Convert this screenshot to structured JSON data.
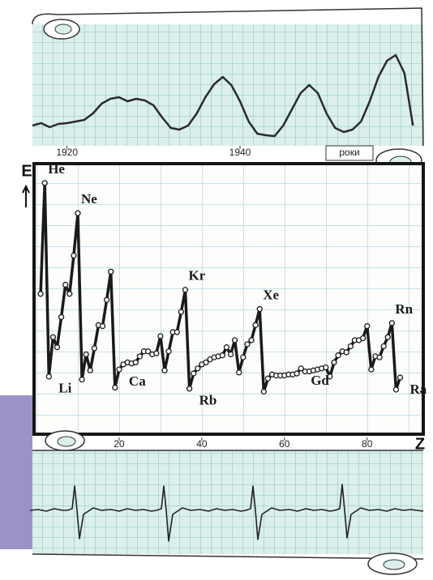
{
  "chart_data": [
    {
      "type": "line",
      "color": "#2b2b2b",
      "x": [
        1916,
        1917,
        1918,
        1919,
        1920,
        1921,
        1922,
        1923,
        1924,
        1925,
        1926,
        1927,
        1928,
        1929,
        1930,
        1931,
        1932,
        1933,
        1934,
        1935,
        1936,
        1937,
        1938,
        1939,
        1940,
        1941,
        1942,
        1943,
        1944,
        1945,
        1946,
        1947,
        1948,
        1949,
        1950,
        1951,
        1952,
        1953,
        1954,
        1955,
        1956,
        1957,
        1958,
        1959,
        1960
      ],
      "values": [
        25,
        28,
        23,
        27,
        28,
        30,
        32,
        40,
        52,
        58,
        60,
        55,
        58,
        56,
        50,
        35,
        22,
        20,
        25,
        40,
        60,
        76,
        85,
        75,
        55,
        30,
        15,
        13,
        12,
        25,
        45,
        65,
        75,
        65,
        40,
        22,
        17,
        20,
        30,
        55,
        85,
        105,
        112,
        90,
        25
      ],
      "xlim": [
        1916,
        1961
      ],
      "ylim": [
        0,
        130
      ],
      "xticks": [
        1920,
        1940
      ],
      "xlabel": "роки"
    },
    {
      "type": "line",
      "color": "#1a1a1a",
      "markers": true,
      "x": [
        1,
        2,
        3,
        4,
        5,
        6,
        7,
        8,
        9,
        10,
        11,
        12,
        13,
        14,
        15,
        16,
        17,
        18,
        19,
        20,
        21,
        22,
        23,
        24,
        25,
        26,
        27,
        28,
        29,
        30,
        31,
        32,
        33,
        34,
        35,
        36,
        37,
        38,
        39,
        40,
        41,
        42,
        43,
        44,
        45,
        46,
        47,
        48,
        49,
        50,
        51,
        52,
        53,
        54,
        55,
        56,
        57,
        58,
        59,
        60,
        61,
        62,
        63,
        64,
        65,
        66,
        67,
        68,
        69,
        70,
        71,
        72,
        73,
        74,
        75,
        76,
        77,
        78,
        79,
        80,
        81,
        82,
        83,
        84,
        85,
        86,
        87,
        88
      ],
      "values": [
        13.6,
        24.6,
        5.4,
        9.3,
        8.3,
        11.3,
        14.5,
        13.6,
        17.4,
        21.6,
        5.1,
        7.6,
        6.0,
        8.2,
        10.5,
        10.4,
        13.0,
        15.8,
        4.3,
        6.1,
        6.6,
        6.8,
        6.7,
        6.8,
        7.4,
        7.9,
        7.9,
        7.6,
        7.7,
        9.4,
        6.0,
        7.9,
        9.8,
        9.8,
        11.8,
        14.0,
        4.2,
        5.7,
        6.2,
        6.6,
        6.8,
        7.1,
        7.3,
        7.4,
        7.5,
        8.3,
        7.6,
        9.0,
        5.8,
        7.3,
        8.6,
        9.0,
        10.5,
        12.1,
        3.9,
        5.2,
        5.6,
        5.5,
        5.5,
        5.5,
        5.6,
        5.6,
        5.7,
        6.2,
        5.9,
        5.9,
        6.0,
        6.1,
        6.2,
        6.3,
        5.4,
        6.8,
        7.5,
        7.9,
        7.8,
        8.4,
        9.0,
        9.0,
        9.2,
        10.4,
        6.1,
        7.4,
        7.3,
        8.4,
        9.3,
        10.7,
        4.1,
        5.3
      ],
      "point_labels": [
        null,
        "He",
        "Li",
        null,
        null,
        null,
        null,
        null,
        null,
        "Ne",
        null,
        null,
        null,
        null,
        null,
        null,
        null,
        null,
        null,
        "Ca",
        null,
        null,
        null,
        null,
        null,
        null,
        null,
        null,
        null,
        null,
        null,
        null,
        null,
        null,
        null,
        "Kr",
        "Rb",
        null,
        null,
        null,
        null,
        null,
        null,
        null,
        null,
        null,
        null,
        null,
        null,
        null,
        null,
        null,
        null,
        "Xe",
        null,
        null,
        null,
        null,
        null,
        null,
        null,
        null,
        null,
        "Gd",
        null,
        null,
        null,
        null,
        null,
        null,
        null,
        null,
        null,
        null,
        null,
        null,
        null,
        null,
        null,
        null,
        null,
        null,
        null,
        null,
        null,
        "Rn",
        null,
        "Ra"
      ],
      "xlim": [
        0,
        93
      ],
      "ylim": [
        0,
        27
      ],
      "xticks": [
        20,
        40,
        60,
        80
      ],
      "xlabel": "Z",
      "ylabel": "E"
    },
    {
      "type": "line",
      "color": "#222222",
      "x": [
        0,
        10,
        20,
        30,
        40,
        46,
        52,
        55,
        58,
        61,
        66,
        78,
        88,
        100,
        110,
        120,
        130,
        140,
        150,
        156,
        162,
        165,
        168,
        171,
        176,
        188,
        198,
        210,
        220,
        230,
        240,
        250,
        260,
        266,
        272,
        275,
        278,
        281,
        286,
        298,
        308,
        320,
        330,
        340,
        350,
        360,
        370,
        376,
        382,
        385,
        388,
        391,
        396,
        408,
        418,
        430,
        440,
        450,
        460,
        470,
        485
      ],
      "values": [
        0,
        1,
        -1,
        2,
        0,
        0,
        2,
        30,
        0,
        -35,
        -5,
        3,
        0,
        1,
        -1,
        2,
        0,
        1,
        -1,
        0,
        2,
        30,
        0,
        -38,
        -5,
        3,
        0,
        1,
        -1,
        2,
        0,
        1,
        -1,
        0,
        2,
        30,
        0,
        -36,
        -5,
        3,
        0,
        1,
        -1,
        2,
        0,
        1,
        -1,
        0,
        2,
        32,
        0,
        -34,
        -5,
        3,
        0,
        1,
        -1,
        2,
        0,
        1,
        -1
      ],
      "xlim": [
        0,
        485
      ],
      "ylim": [
        -45,
        40
      ]
    }
  ]
}
